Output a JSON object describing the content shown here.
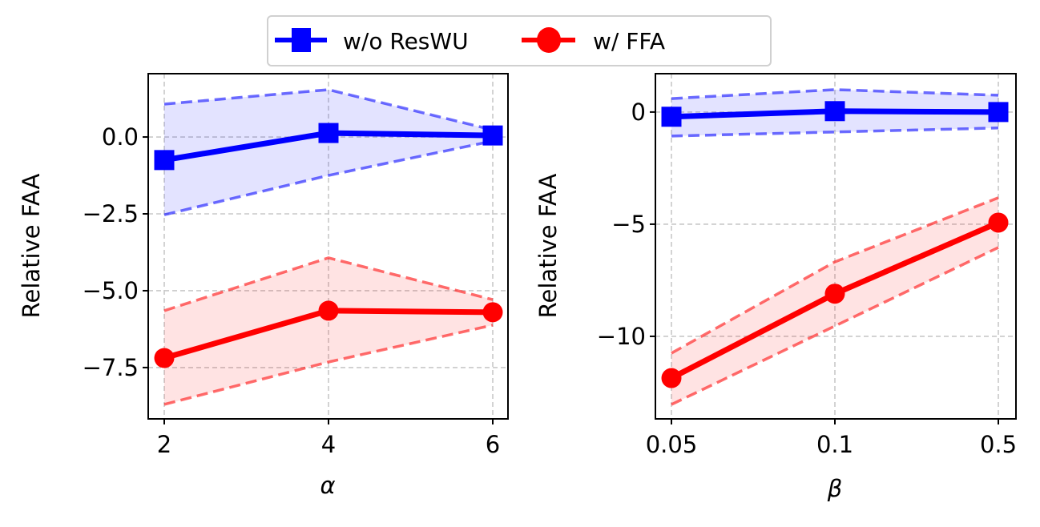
{
  "legend": {
    "entries": [
      {
        "label": "w/o ResWU",
        "color": "#0000ff",
        "marker": "square"
      },
      {
        "label": "w/ FFA",
        "color": "#ff0000",
        "marker": "circle"
      }
    ],
    "placement": "top-center"
  },
  "chart_data": [
    {
      "type": "line",
      "title": "",
      "xlabel": "α",
      "ylabel": "Relative FAA",
      "categories": [
        "2",
        "4",
        "6"
      ],
      "ylim": [
        -9.17,
        2.06
      ],
      "yticks": [
        0.0,
        -2.5,
        -5.0,
        -7.5
      ],
      "ytick_labels": [
        "0.0",
        "−2.5",
        "−5.0",
        "−7.5"
      ],
      "grid": true,
      "series": [
        {
          "name": "w/o ResWU",
          "color": "#0000ff",
          "marker": "square",
          "values": [
            -0.75,
            0.13,
            0.05
          ],
          "upper": [
            1.07,
            1.54,
            0.23
          ],
          "lower": [
            -2.53,
            -1.25,
            -0.13
          ]
        },
        {
          "name": "w/ FFA",
          "color": "#ff0000",
          "marker": "circle",
          "values": [
            -7.19,
            -5.65,
            -5.7
          ],
          "upper": [
            -5.65,
            -3.93,
            -5.29
          ],
          "lower": [
            -8.7,
            -7.32,
            -6.12
          ]
        }
      ]
    },
    {
      "type": "line",
      "title": "",
      "xlabel": "β",
      "ylabel": "Relative FAA",
      "categories": [
        "0.05",
        "0.1",
        "0.5"
      ],
      "ylim": [
        -13.68,
        1.71
      ],
      "yticks": [
        0,
        -5,
        -10
      ],
      "ytick_labels": [
        "0",
        "−5",
        "−10"
      ],
      "grid": true,
      "series": [
        {
          "name": "w/o ResWU",
          "color": "#0000ff",
          "marker": "square",
          "values": [
            -0.21,
            0.04,
            0.0
          ],
          "upper": [
            0.6,
            1.0,
            0.75
          ],
          "lower": [
            -1.07,
            -0.89,
            -0.71
          ]
        },
        {
          "name": "w/ FFA",
          "color": "#ff0000",
          "marker": "circle",
          "values": [
            -11.86,
            -8.1,
            -4.93
          ],
          "upper": [
            -10.75,
            -6.68,
            -3.82
          ],
          "lower": [
            -13.04,
            -9.54,
            -6.04
          ]
        }
      ]
    }
  ]
}
